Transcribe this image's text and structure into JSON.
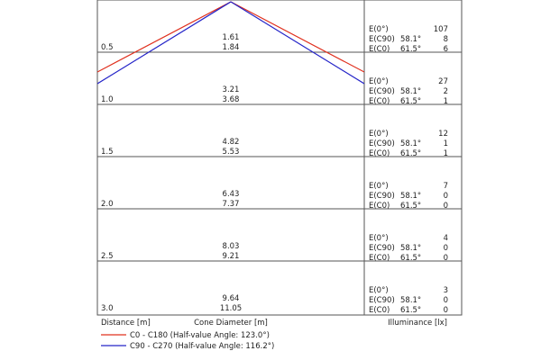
{
  "headers": {
    "distance": "Distance [m]",
    "diameter": "Cone Diameter [m]",
    "illuminance": "Illuminance [lx]"
  },
  "row_labels": {
    "e0": "E(0°)",
    "ec90": "E(C90)",
    "ec0": "E(C0)"
  },
  "rows": [
    {
      "distance": "0.5",
      "d1": "1.61",
      "d2": "1.84",
      "a_c90": "58.1°",
      "a_c0": "61.5°",
      "e0": "107",
      "ec90": "8",
      "ec0": "6"
    },
    {
      "distance": "1.0",
      "d1": "3.21",
      "d2": "3.68",
      "a_c90": "58.1°",
      "a_c0": "61.5°",
      "e0": "27",
      "ec90": "2",
      "ec0": "1"
    },
    {
      "distance": "1.5",
      "d1": "4.82",
      "d2": "5.53",
      "a_c90": "58.1°",
      "a_c0": "61.5°",
      "e0": "12",
      "ec90": "1",
      "ec0": "1"
    },
    {
      "distance": "2.0",
      "d1": "6.43",
      "d2": "7.37",
      "a_c90": "58.1°",
      "a_c0": "61.5°",
      "e0": "7",
      "ec90": "0",
      "ec0": "0"
    },
    {
      "distance": "2.5",
      "d1": "8.03",
      "d2": "9.21",
      "a_c90": "58.1°",
      "a_c0": "61.5°",
      "e0": "4",
      "ec90": "0",
      "ec0": "0"
    },
    {
      "distance": "3.0",
      "d1": "9.64",
      "d2": "11.05",
      "a_c90": "58.1°",
      "a_c0": "61.5°",
      "e0": "3",
      "ec90": "0",
      "ec0": "0"
    }
  ],
  "legend": [
    {
      "label": "C0 - C180 (Half-value Angle: 123.0°)",
      "color": "#e0301e"
    },
    {
      "label": "C90 - C270 (Half-value Angle: 116.2°)",
      "color": "#2424c8"
    }
  ]
}
